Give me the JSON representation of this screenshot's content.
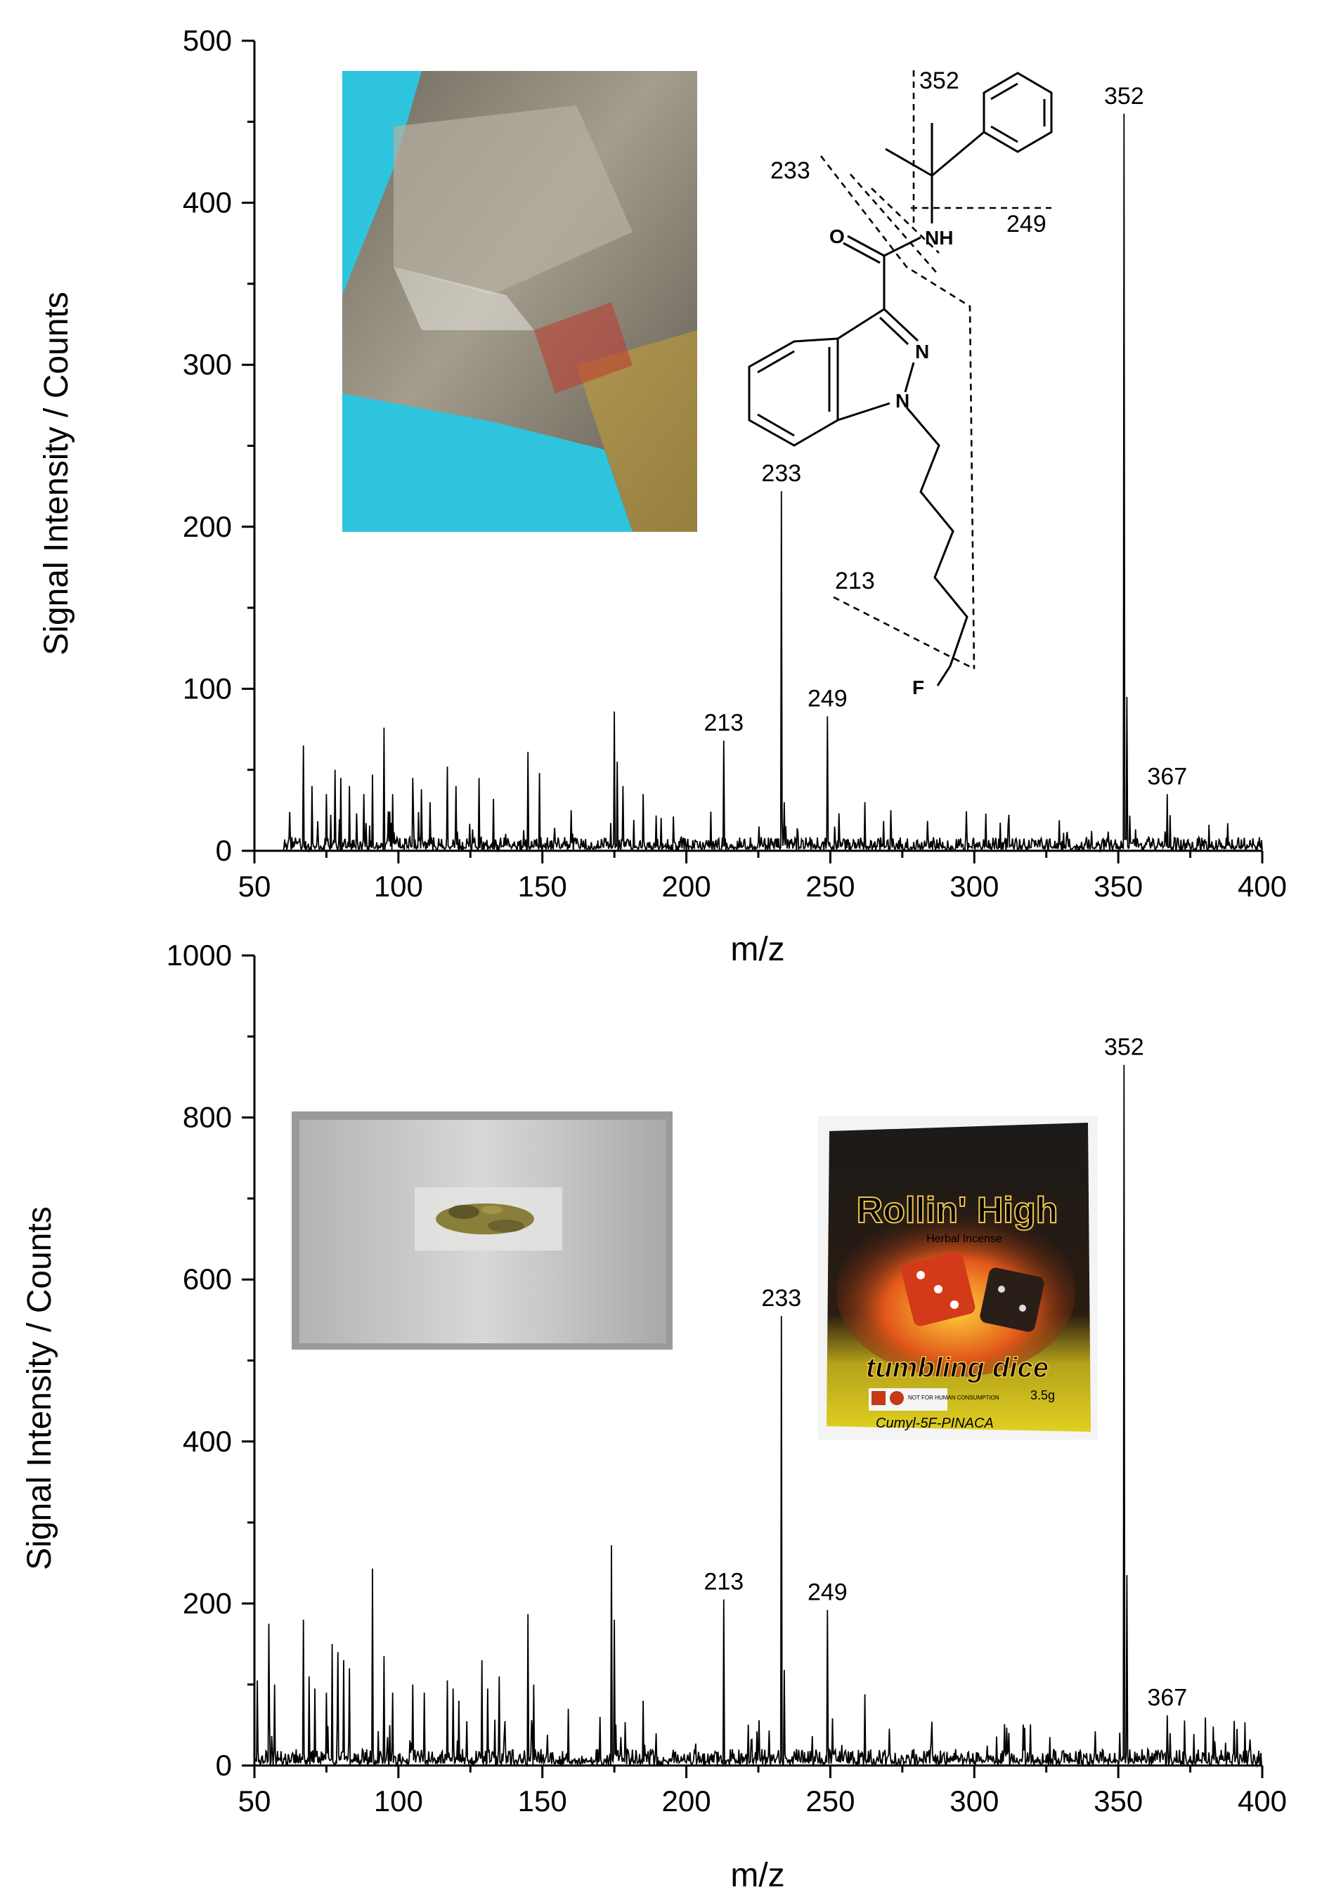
{
  "chart_data": [
    {
      "type": "line",
      "panel": "top",
      "xlabel": "m/z",
      "ylabel": "Signal Intensity / Counts",
      "xlim": [
        50,
        400
      ],
      "ylim": [
        0,
        500
      ],
      "xticks": [
        50,
        100,
        150,
        200,
        250,
        300,
        350,
        400
      ],
      "yticks": [
        0,
        100,
        200,
        300,
        400,
        500
      ],
      "x_start": 60,
      "noise_level": 5,
      "peaks": [
        {
          "x": 67,
          "y": 65
        },
        {
          "x": 70,
          "y": 40
        },
        {
          "x": 75,
          "y": 35
        },
        {
          "x": 78,
          "y": 50
        },
        {
          "x": 80,
          "y": 45
        },
        {
          "x": 83,
          "y": 40
        },
        {
          "x": 88,
          "y": 35
        },
        {
          "x": 91,
          "y": 47
        },
        {
          "x": 95,
          "y": 76
        },
        {
          "x": 98,
          "y": 35
        },
        {
          "x": 105,
          "y": 45
        },
        {
          "x": 108,
          "y": 38
        },
        {
          "x": 111,
          "y": 30
        },
        {
          "x": 117,
          "y": 52
        },
        {
          "x": 120,
          "y": 40
        },
        {
          "x": 128,
          "y": 45
        },
        {
          "x": 133,
          "y": 32
        },
        {
          "x": 145,
          "y": 61
        },
        {
          "x": 149,
          "y": 48
        },
        {
          "x": 160,
          "y": 25
        },
        {
          "x": 175,
          "y": 86
        },
        {
          "x": 176,
          "y": 55
        },
        {
          "x": 178,
          "y": 40
        },
        {
          "x": 185,
          "y": 35
        },
        {
          "x": 213,
          "y": 68
        },
        {
          "x": 233,
          "y": 222
        },
        {
          "x": 234,
          "y": 30
        },
        {
          "x": 249,
          "y": 83
        },
        {
          "x": 262,
          "y": 30
        },
        {
          "x": 271,
          "y": 25
        },
        {
          "x": 352,
          "y": 455
        },
        {
          "x": 353,
          "y": 95
        },
        {
          "x": 367,
          "y": 35
        },
        {
          "x": 368,
          "y": 22
        }
      ],
      "peak_labels": [
        {
          "x": 213,
          "y": 68,
          "label": "213"
        },
        {
          "x": 233,
          "y": 222,
          "label": "233"
        },
        {
          "x": 249,
          "y": 83,
          "label": "249"
        },
        {
          "x": 352,
          "y": 455,
          "label": "352"
        },
        {
          "x": 367,
          "y": 35,
          "label": "367"
        }
      ],
      "structure_labels": [
        "352",
        "233",
        "249",
        "213"
      ],
      "atoms": [
        "O",
        "NH",
        "N",
        "N",
        "F"
      ]
    },
    {
      "type": "line",
      "panel": "bottom",
      "xlabel": "m/z",
      "ylabel": "Signal Intensity / Counts",
      "xlim": [
        50,
        400
      ],
      "ylim": [
        0,
        1000
      ],
      "xticks": [
        50,
        100,
        150,
        200,
        250,
        300,
        350,
        400
      ],
      "yticks": [
        0,
        200,
        400,
        600,
        800,
        1000
      ],
      "x_start": 50,
      "noise_level": 12,
      "peaks": [
        {
          "x": 51,
          "y": 105
        },
        {
          "x": 55,
          "y": 175
        },
        {
          "x": 57,
          "y": 100
        },
        {
          "x": 67,
          "y": 180
        },
        {
          "x": 69,
          "y": 110
        },
        {
          "x": 71,
          "y": 95
        },
        {
          "x": 75,
          "y": 90
        },
        {
          "x": 77,
          "y": 150
        },
        {
          "x": 79,
          "y": 140
        },
        {
          "x": 81,
          "y": 130
        },
        {
          "x": 83,
          "y": 120
        },
        {
          "x": 91,
          "y": 243
        },
        {
          "x": 95,
          "y": 135
        },
        {
          "x": 98,
          "y": 90
        },
        {
          "x": 105,
          "y": 100
        },
        {
          "x": 109,
          "y": 90
        },
        {
          "x": 117,
          "y": 105
        },
        {
          "x": 119,
          "y": 95
        },
        {
          "x": 121,
          "y": 80
        },
        {
          "x": 129,
          "y": 130
        },
        {
          "x": 131,
          "y": 95
        },
        {
          "x": 135,
          "y": 110
        },
        {
          "x": 145,
          "y": 187
        },
        {
          "x": 147,
          "y": 100
        },
        {
          "x": 159,
          "y": 70
        },
        {
          "x": 170,
          "y": 60
        },
        {
          "x": 174,
          "y": 272
        },
        {
          "x": 175,
          "y": 180
        },
        {
          "x": 185,
          "y": 80
        },
        {
          "x": 213,
          "y": 205
        },
        {
          "x": 233,
          "y": 555
        },
        {
          "x": 234,
          "y": 118
        },
        {
          "x": 249,
          "y": 192
        },
        {
          "x": 262,
          "y": 88
        },
        {
          "x": 352,
          "y": 865
        },
        {
          "x": 353,
          "y": 235
        },
        {
          "x": 367,
          "y": 62
        },
        {
          "x": 368,
          "y": 40
        }
      ],
      "peak_labels": [
        {
          "x": 213,
          "y": 205,
          "label": "213"
        },
        {
          "x": 233,
          "y": 555,
          "label": "233"
        },
        {
          "x": 249,
          "y": 192,
          "label": "249"
        },
        {
          "x": 352,
          "y": 865,
          "label": "352"
        },
        {
          "x": 367,
          "y": 62,
          "label": "367"
        }
      ]
    }
  ],
  "photo_insets": {
    "top_left": "sachet-gloved-hand-photo",
    "bottom_left": "sample-on-plate-photo",
    "bottom_right": {
      "brand": "Rollin' High",
      "subtitle": "Herbal Incense",
      "product": "tumbling dice",
      "weight": "3.5g",
      "handwritten": "Cumyl-5F-PINACA",
      "warning": "NOT FOR HUMAN CONSUMPTION"
    }
  },
  "colors": {
    "trace": "#000000",
    "glove": "#2ec4dd",
    "foil": "#8c8576",
    "plate": "#b9b9b9",
    "herb": "#7d7430",
    "bag_dark": "#1c1a19",
    "bag_yellow": "#d9c81c",
    "flame": "#e2571a",
    "logo": "#c43a12"
  }
}
